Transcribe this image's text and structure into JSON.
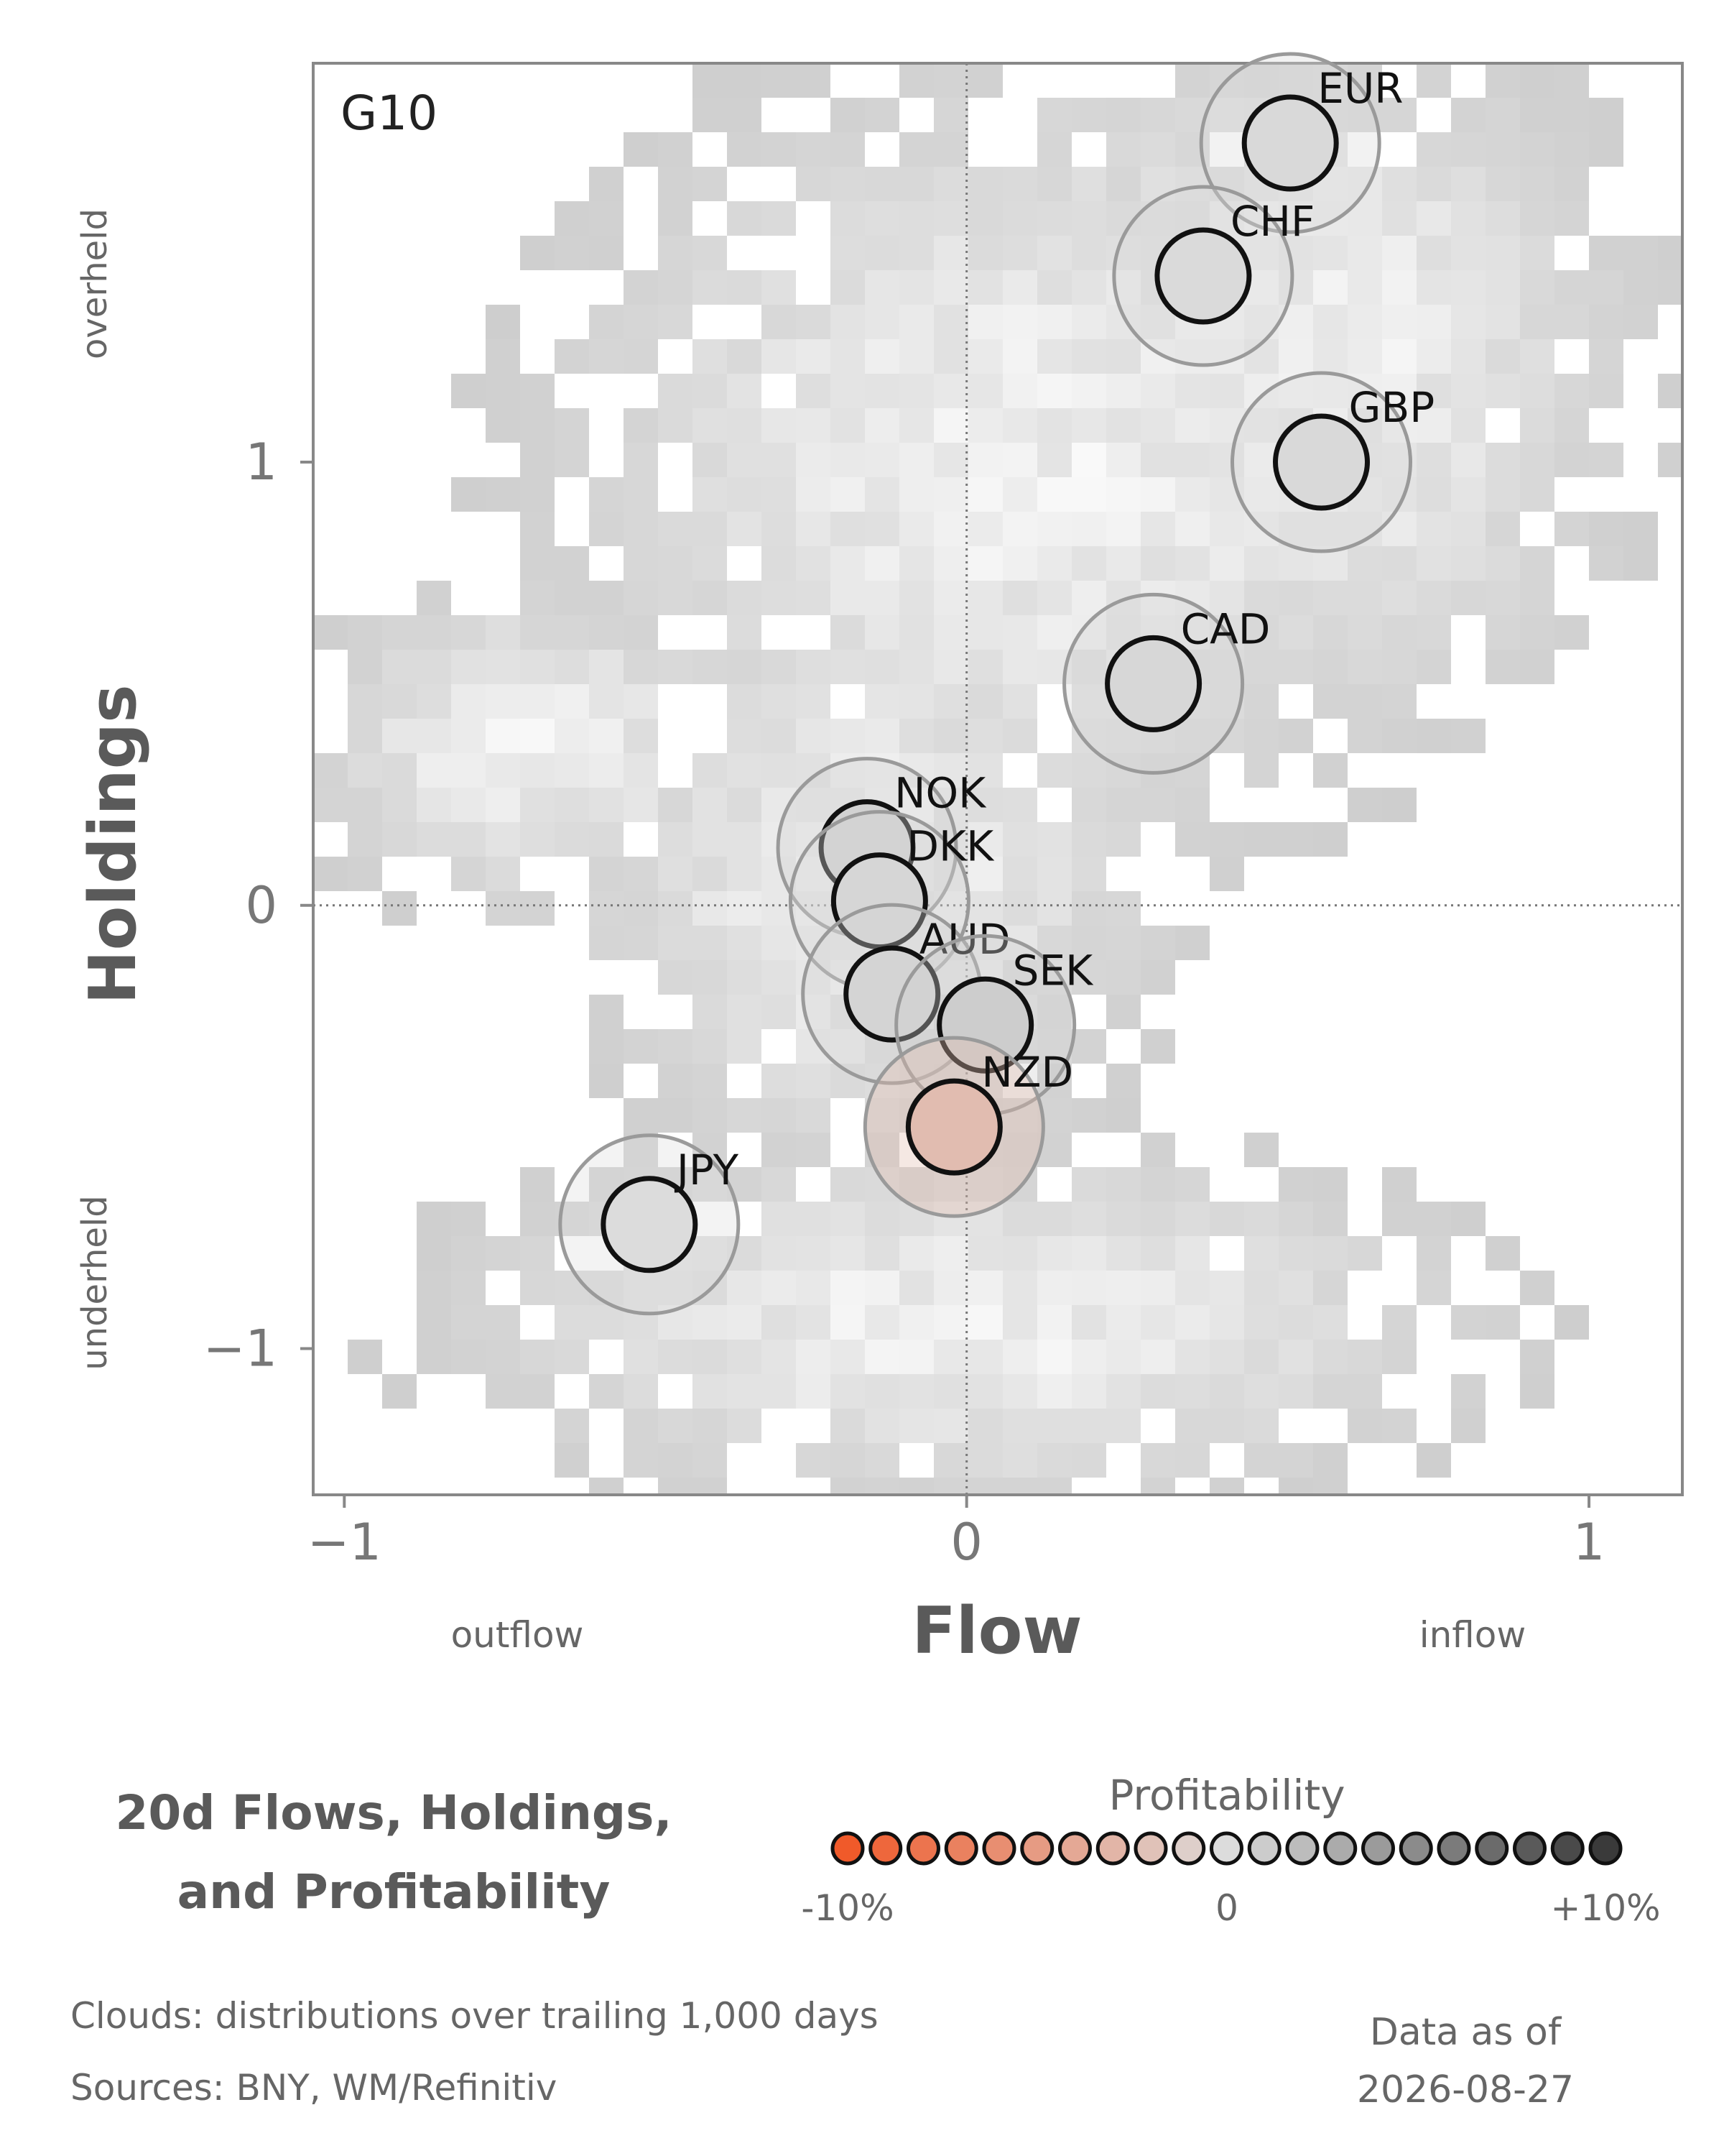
{
  "chart_data": {
    "type": "scatter",
    "panel_label": "G10",
    "xlabel": "Flow",
    "ylabel": "Holdings",
    "x_annotations": {
      "left": "outflow",
      "right": "inflow"
    },
    "y_annotations": {
      "top": "overheld",
      "bottom": "underheld"
    },
    "xlim": [
      -1.05,
      1.15
    ],
    "ylim": [
      -1.33,
      1.9
    ],
    "x_ticks": [
      {
        "value": -1,
        "label": "−1"
      },
      {
        "value": 0,
        "label": "0"
      },
      {
        "value": 1,
        "label": "1"
      }
    ],
    "y_ticks": [
      {
        "value": 1,
        "label": "1"
      },
      {
        "value": 0,
        "label": "0"
      },
      {
        "value": -1,
        "label": "−1"
      }
    ],
    "reference_lines": {
      "x": 0,
      "y": 0,
      "style": "dotted"
    },
    "background": "grey density clouds of trailing distributions",
    "points": [
      {
        "label": "EUR",
        "x": 0.52,
        "y": 1.72,
        "profitability": 0.2
      },
      {
        "label": "CHF",
        "x": 0.38,
        "y": 1.42,
        "profitability": 0.1
      },
      {
        "label": "GBP",
        "x": 0.57,
        "y": 1.0,
        "profitability": 0.2
      },
      {
        "label": "CAD",
        "x": 0.3,
        "y": 0.5,
        "profitability": 0.3
      },
      {
        "label": "NOK",
        "x": -0.16,
        "y": 0.13,
        "profitability": 0.6
      },
      {
        "label": "DKK",
        "x": -0.14,
        "y": 0.01,
        "profitability": 0.4
      },
      {
        "label": "AUD",
        "x": -0.12,
        "y": -0.2,
        "profitability": 0.5
      },
      {
        "label": "SEK",
        "x": 0.03,
        "y": -0.27,
        "profitability": 0.9
      },
      {
        "label": "NZD",
        "x": -0.02,
        "y": -0.5,
        "profitability": -2.5
      },
      {
        "label": "JPY",
        "x": -0.51,
        "y": -0.72,
        "profitability": 0.0
      }
    ],
    "colorbar": {
      "title": "Profitability",
      "min_label": "-10%",
      "mid_label": "0",
      "max_label": "+10%",
      "range": [
        -10,
        10
      ],
      "steps": 21,
      "low_color": "#f05a2a",
      "mid_color": "#dcdcdc",
      "high_color": "#3a3a3a"
    }
  },
  "title_lines": [
    "20d Flows, Holdings,",
    "and Profitability"
  ],
  "footnotes": [
    "Clouds:  distributions over trailing 1,000 days",
    "Sources:  BNY, WM/Refinitiv"
  ],
  "data_as_of": {
    "label": "Data as of",
    "date": "2026-08-27"
  }
}
